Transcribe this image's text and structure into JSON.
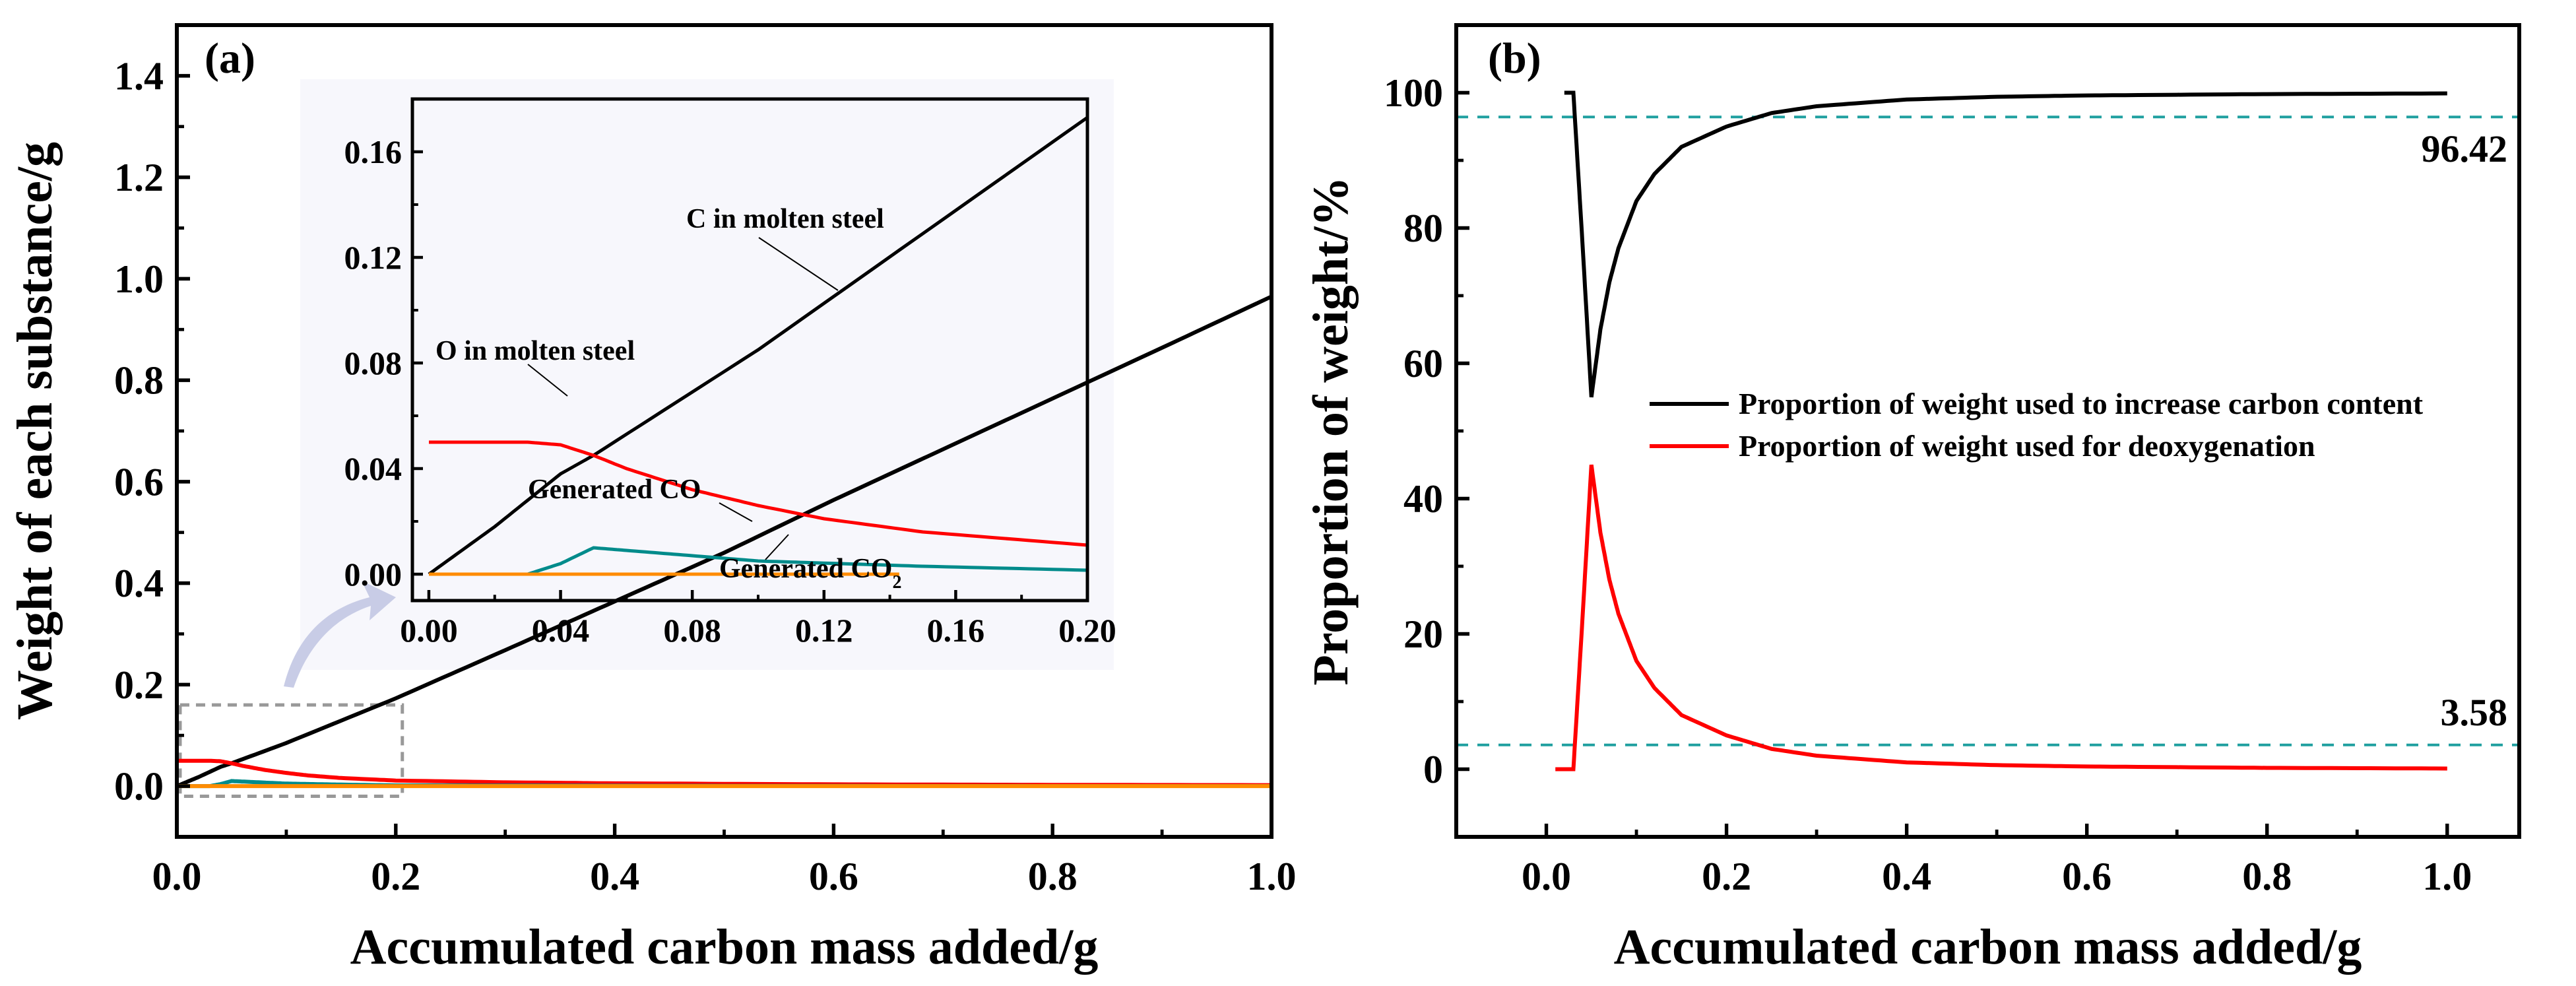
{
  "chart_data": [
    {
      "panel_label": "(a)",
      "type": "line",
      "xlabel": "Accumulated carbon mass added/g",
      "ylabel": "Weight of each substance/g",
      "xlim": [
        0.0,
        1.0
      ],
      "ylim": [
        -0.1,
        1.5
      ],
      "xticks": [
        "0.0",
        "0.2",
        "0.4",
        "0.6",
        "0.8",
        "1.0"
      ],
      "xtick_values": [
        0.0,
        0.2,
        0.4,
        0.6,
        0.8,
        1.0
      ],
      "yticks": [
        "0.0",
        "0.2",
        "0.4",
        "0.6",
        "0.8",
        "1.0",
        "1.2",
        "1.4"
      ],
      "ytick_values": [
        0.0,
        0.2,
        0.4,
        0.6,
        0.8,
        1.0,
        1.2,
        1.4
      ],
      "colors": {
        "c": "#000000",
        "o": "#ff0000",
        "co": "#008b8b",
        "co2": "#ff8c00",
        "zoom_box": "#999999",
        "arrow": "#c8cce6",
        "inset_bg": "#f7f7fc"
      },
      "series": [
        {
          "name": "C in molten steel",
          "x": [
            0,
            0.02,
            0.04,
            0.05,
            0.1,
            0.2,
            0.3,
            0.4,
            0.5,
            0.6,
            0.7,
            0.8,
            0.9,
            1.0
          ],
          "values": [
            0,
            0.018,
            0.038,
            0.045,
            0.085,
            0.173,
            0.268,
            0.364,
            0.46,
            0.564,
            0.664,
            0.764,
            0.864,
            0.965
          ]
        },
        {
          "name": "O in molten steel",
          "x": [
            0,
            0.02,
            0.03,
            0.04,
            0.05,
            0.06,
            0.08,
            0.1,
            0.12,
            0.15,
            0.2,
            0.3,
            0.4,
            0.6,
            0.8,
            1.0
          ],
          "values": [
            0.05,
            0.05,
            0.05,
            0.049,
            0.045,
            0.04,
            0.032,
            0.026,
            0.021,
            0.016,
            0.011,
            0.0075,
            0.0055,
            0.0035,
            0.0025,
            0.002
          ]
        },
        {
          "name": "Generated CO",
          "x": [
            0,
            0.03,
            0.04,
            0.05,
            0.06,
            0.08,
            0.1,
            0.12,
            0.15,
            0.2,
            0.4,
            0.6,
            0.8,
            1.0
          ],
          "values": [
            0,
            0,
            0.004,
            0.01,
            0.009,
            0.007,
            0.005,
            0.0042,
            0.003,
            0.0015,
            0.0008,
            0.0004,
            0.0002,
            0.0001
          ]
        },
        {
          "name": "Generated CO2",
          "x": [
            0,
            1.0
          ],
          "values": [
            0,
            0
          ]
        }
      ],
      "inset": {
        "xlim": [
          -0.005,
          0.2
        ],
        "ylim": [
          -0.01,
          0.18
        ],
        "xticks": [
          "0.00",
          "0.04",
          "0.08",
          "0.12",
          "0.16",
          "0.20"
        ],
        "xtick_values": [
          0.0,
          0.04,
          0.08,
          0.12,
          0.16,
          0.2
        ],
        "yticks": [
          "0.00",
          "0.04",
          "0.08",
          "0.12",
          "0.16"
        ],
        "ytick_values": [
          0.0,
          0.04,
          0.08,
          0.12,
          0.16
        ],
        "annotations": [
          {
            "text": "C in molten steel",
            "target": "C in molten steel"
          },
          {
            "text": "O in molten steel",
            "target": "O in molten steel"
          },
          {
            "text": "Generated CO",
            "target": "Generated CO"
          },
          {
            "text": "Generated CO",
            "subscript": "2",
            "target": "Generated CO2"
          }
        ]
      }
    },
    {
      "panel_label": "(b)",
      "type": "line",
      "xlabel": "Accumulated carbon mass added/g",
      "ylabel": "Proportion of weight/%",
      "xlim": [
        -0.1,
        1.08
      ],
      "ylim": [
        -10,
        110
      ],
      "xticks": [
        "0.0",
        "0.2",
        "0.4",
        "0.6",
        "0.8",
        "1.0"
      ],
      "xtick_values": [
        0.0,
        0.2,
        0.4,
        0.6,
        0.8,
        1.0
      ],
      "yticks": [
        "0",
        "20",
        "40",
        "60",
        "80",
        "100"
      ],
      "ytick_values": [
        0,
        20,
        40,
        60,
        80,
        100
      ],
      "colors": {
        "carbon": "#000000",
        "deox": "#ff0000",
        "ref_line": "#20a0a0"
      },
      "series": [
        {
          "name": "Proportion of weight used to increase carbon content",
          "x": [
            0.02,
            0.03,
            0.04,
            0.05,
            0.06,
            0.07,
            0.08,
            0.1,
            0.12,
            0.15,
            0.2,
            0.25,
            0.3,
            0.4,
            0.5,
            0.6,
            0.8,
            1.0
          ],
          "values": [
            100,
            100,
            78,
            55,
            65,
            72,
            77,
            84,
            88,
            92,
            95,
            97,
            98,
            99,
            99.4,
            99.6,
            99.8,
            99.9
          ]
        },
        {
          "name": "Proportion of weight used for deoxygenation",
          "x": [
            0.01,
            0.02,
            0.03,
            0.04,
            0.05,
            0.06,
            0.07,
            0.08,
            0.1,
            0.12,
            0.15,
            0.2,
            0.25,
            0.3,
            0.4,
            0.5,
            0.6,
            0.8,
            1.0
          ],
          "values": [
            0,
            0,
            0,
            22,
            45,
            35,
            28,
            23,
            16,
            12,
            8,
            5,
            3,
            2,
            1,
            0.6,
            0.4,
            0.2,
            0.1
          ]
        }
      ],
      "reference_lines": [
        {
          "value": 96.42,
          "label": "96.42"
        },
        {
          "value": 3.58,
          "label": "3.58"
        }
      ],
      "legend": "center-right"
    }
  ]
}
